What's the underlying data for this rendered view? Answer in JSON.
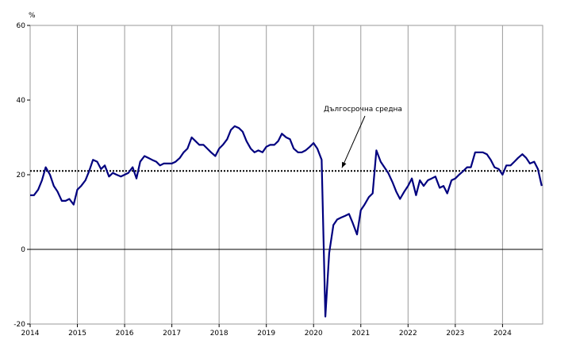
{
  "chart_data": {
    "type": "line",
    "title": "",
    "xlabel": "",
    "ylabel": "%",
    "ylim": [
      -20,
      60
    ],
    "yticks": [
      -20,
      0,
      20,
      40,
      60
    ],
    "xlim": [
      2014.0,
      2024.85
    ],
    "xticks": [
      "2014",
      "2015",
      "2016",
      "2017",
      "2018",
      "2019",
      "2020",
      "2021",
      "2022",
      "2023",
      "2024"
    ],
    "grid": "vertical lines at year boundaries",
    "colors": {
      "series": "#00007f",
      "grid": "#9a9a9a",
      "zero_line": "#000000",
      "average_line": "#000000"
    },
    "average": {
      "label": "Дългосрочна средна",
      "value": 21.0,
      "style": "dotted"
    },
    "annotation": {
      "text": "Дългосрочна средна",
      "arrow_to": {
        "x": 2020.6,
        "y": 21.0
      }
    },
    "series": [
      {
        "x": [
          2014.0,
          2014.08,
          2014.17,
          2014.25,
          2014.33,
          2014.42,
          2014.5,
          2014.58,
          2014.67,
          2014.75,
          2014.83,
          2014.92,
          2015.0,
          2015.08,
          2015.17,
          2015.25,
          2015.33,
          2015.42,
          2015.5,
          2015.58,
          2015.67,
          2015.75,
          2015.83,
          2015.92,
          2016.0,
          2016.08,
          2016.17,
          2016.25,
          2016.33,
          2016.42,
          2016.5,
          2016.58,
          2016.67,
          2016.75,
          2016.83,
          2016.92,
          2017.0,
          2017.08,
          2017.17,
          2017.25,
          2017.33,
          2017.42,
          2017.5,
          2017.58,
          2017.67,
          2017.75,
          2017.83,
          2017.92,
          2018.0,
          2018.08,
          2018.17,
          2018.25,
          2018.33,
          2018.42,
          2018.5,
          2018.58,
          2018.67,
          2018.75,
          2018.83,
          2018.92,
          2019.0,
          2019.08,
          2019.17,
          2019.25,
          2019.33,
          2019.42,
          2019.5,
          2019.58,
          2019.67,
          2019.75,
          2019.83,
          2019.92,
          2020.0,
          2020.08,
          2020.17,
          2020.25,
          2020.33,
          2020.42,
          2020.5,
          2020.58,
          2020.67,
          2020.75,
          2020.83,
          2020.92,
          2021.0,
          2021.08,
          2021.17,
          2021.25,
          2021.33,
          2021.42,
          2021.5,
          2021.58,
          2021.67,
          2021.75,
          2021.83,
          2021.92,
          2022.0,
          2022.08,
          2022.17,
          2022.25,
          2022.33,
          2022.42,
          2022.5,
          2022.58,
          2022.67,
          2022.75,
          2022.83,
          2022.92,
          2023.0,
          2023.08,
          2023.17,
          2023.25,
          2023.33,
          2023.42,
          2023.5,
          2023.58,
          2023.67,
          2023.75,
          2023.83,
          2023.92,
          2024.0,
          2024.08,
          2024.17,
          2024.25,
          2024.33,
          2024.42,
          2024.5,
          2024.58,
          2024.67,
          2024.75,
          2024.83
        ],
        "values": [
          14.5,
          14.5,
          16.0,
          18.5,
          22.0,
          20.0,
          17.0,
          15.5,
          13.0,
          13.0,
          13.5,
          12.0,
          16.0,
          17.0,
          18.5,
          21.0,
          24.0,
          23.5,
          21.5,
          22.5,
          19.5,
          20.5,
          20.0,
          19.5,
          20.0,
          20.5,
          22.0,
          19.0,
          23.5,
          25.0,
          24.5,
          24.0,
          23.5,
          22.5,
          23.0,
          23.0,
          23.0,
          23.5,
          24.5,
          26.0,
          27.0,
          30.0,
          29.0,
          28.0,
          28.0,
          27.0,
          26.0,
          25.0,
          27.0,
          28.0,
          29.5,
          32.0,
          33.0,
          32.5,
          31.5,
          29.0,
          27.0,
          26.0,
          26.5,
          26.0,
          27.5,
          28.0,
          28.0,
          29.0,
          31.0,
          30.0,
          29.5,
          27.0,
          26.0,
          26.0,
          26.5,
          27.5,
          28.5,
          27.0,
          24.0,
          -18.0,
          -1.0,
          6.5,
          8.0,
          8.5,
          9.0,
          9.5,
          7.0,
          4.0,
          10.5,
          12.0,
          14.0,
          15.0,
          26.5,
          23.5,
          22.0,
          20.5,
          18.0,
          15.5,
          13.5,
          15.5,
          17.0,
          19.0,
          14.5,
          18.5,
          17.0,
          18.5,
          19.0,
          19.5,
          16.5,
          17.0,
          15.0,
          18.5,
          19.0,
          20.0,
          21.0,
          22.0,
          22.0,
          26.0,
          26.0,
          26.0,
          25.5,
          24.0,
          22.0,
          21.5,
          20.0,
          22.5,
          22.5,
          23.5,
          24.5,
          25.5,
          24.5,
          23.0,
          23.5,
          21.5,
          17.0
        ]
      }
    ]
  }
}
